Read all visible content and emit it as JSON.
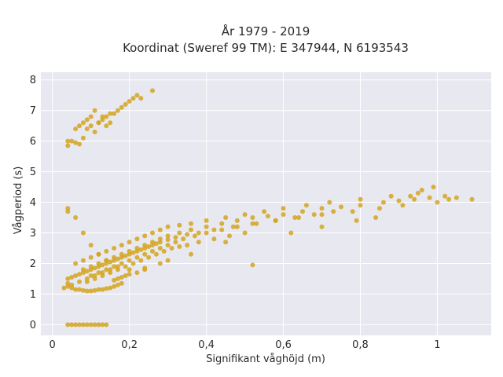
{
  "chart_data": {
    "type": "scatter",
    "title_line1": "År 1979 - 2019",
    "title_line2": "Koordinat (Sweref 99 TM): E 347944, N 6193543",
    "xlabel": "Signifikant våghöjd (m)",
    "ylabel": "Vågperiod (s)",
    "xlim": [
      -0.03,
      1.14
    ],
    "ylim": [
      -0.35,
      8.25
    ],
    "xticks": [
      0,
      0.2,
      0.4,
      0.6,
      0.8,
      1
    ],
    "xtick_labels": [
      "0",
      "0,2",
      "0,4",
      "0,6",
      "0,8",
      "1"
    ],
    "yticks": [
      0,
      1,
      2,
      3,
      4,
      5,
      6,
      7,
      8
    ],
    "ytick_labels": [
      "0",
      "1",
      "2",
      "3",
      "4",
      "5",
      "6",
      "7",
      "8"
    ],
    "grid": true,
    "marker_color": "#d4a520",
    "background_color": "#e8e8f0",
    "grid_color": "#ffffff",
    "series": [
      {
        "x": [
          0.04,
          0.05,
          0.06,
          0.07,
          0.08,
          0.09,
          0.1,
          0.11,
          0.12,
          0.13,
          0.14,
          0.04,
          0.05,
          0.06,
          0.07,
          0.08,
          0.09,
          0.1,
          0.11,
          0.12,
          0.13,
          0.14,
          0.15,
          0.16,
          0.17,
          0.18,
          0.16,
          0.17,
          0.18,
          0.19,
          0.2,
          0.22,
          0.24,
          0.04,
          0.05,
          0.06,
          0.07,
          0.08,
          0.09,
          0.1,
          0.11,
          0.12,
          0.13,
          0.14,
          0.15,
          0.16,
          0.17,
          0.18,
          0.19,
          0.2,
          0.21,
          0.22,
          0.23,
          0.24,
          0.25,
          0.26,
          0.27,
          0.28,
          0.3,
          0.32,
          0.35,
          0.38,
          0.42,
          0.47,
          0.52,
          0.58,
          0.64,
          0.7,
          0.78,
          0.85,
          0.06,
          0.08,
          0.1,
          0.12,
          0.14,
          0.16,
          0.18,
          0.2,
          0.22,
          0.24,
          0.26,
          0.28,
          0.3,
          0.33,
          0.36,
          0.4,
          0.45,
          0.5,
          0.55,
          0.6,
          0.66,
          0.72,
          0.8,
          0.88,
          0.95,
          0.08,
          0.1,
          0.12,
          0.14,
          0.16,
          0.18,
          0.2,
          0.22,
          0.24,
          0.26,
          0.28,
          0.3,
          0.33,
          0.36,
          0.4,
          0.44,
          0.48,
          0.52,
          0.56,
          0.6,
          0.65,
          0.7,
          0.75,
          0.8,
          0.86,
          0.9,
          0.94,
          0.98,
          1.02,
          1.05,
          1.09,
          0.62,
          0.7,
          0.79,
          0.84,
          0.91,
          0.93,
          0.96,
          0.99,
          1.0,
          1.03,
          0.09,
          0.11,
          0.13,
          0.15,
          0.17,
          0.19,
          0.21,
          0.23,
          0.25,
          0.27,
          0.29,
          0.31,
          0.33,
          0.35,
          0.38,
          0.42,
          0.46,
          0.5,
          0.1,
          0.12,
          0.14,
          0.16,
          0.18,
          0.2,
          0.22,
          0.24,
          0.26,
          0.28,
          0.3,
          0.32,
          0.34,
          0.37,
          0.4,
          0.44,
          0.48,
          0.53,
          0.58,
          0.63,
          0.68,
          0.73,
          0.03,
          0.05,
          0.07,
          0.09,
          0.11,
          0.13,
          0.15,
          0.04,
          0.06,
          0.08,
          0.1,
          0.12,
          0.14,
          0.17,
          0.2,
          0.24,
          0.28,
          0.3,
          0.36,
          0.45,
          0.52,
          0.06,
          0.07,
          0.08,
          0.09,
          0.1,
          0.11,
          0.12,
          0.13,
          0.14,
          0.15,
          0.16,
          0.17,
          0.18,
          0.19,
          0.2,
          0.21,
          0.22,
          0.23,
          0.26,
          0.04,
          0.05,
          0.06,
          0.07,
          0.08,
          0.09,
          0.1,
          0.11,
          0.12,
          0.13,
          0.14,
          0.15,
          0.04,
          0.04,
          0.04
        ],
        "y": [
          0,
          0,
          0,
          0,
          0,
          0,
          0,
          0,
          0,
          0,
          0,
          1.25,
          1.2,
          1.15,
          1.15,
          1.12,
          1.1,
          1.1,
          1.12,
          1.15,
          1.15,
          1.18,
          1.2,
          1.25,
          1.3,
          1.35,
          1.45,
          1.5,
          1.55,
          1.6,
          1.65,
          1.7,
          1.8,
          1.5,
          1.55,
          1.6,
          1.65,
          1.7,
          1.75,
          1.8,
          1.85,
          1.9,
          1.95,
          2.0,
          2.05,
          2.1,
          2.15,
          2.2,
          2.25,
          2.3,
          2.35,
          2.4,
          2.45,
          2.5,
          2.55,
          2.6,
          2.65,
          2.7,
          2.78,
          2.85,
          2.95,
          3.0,
          3.1,
          3.2,
          3.3,
          3.4,
          3.5,
          3.6,
          3.7,
          3.8,
          2.0,
          2.1,
          2.2,
          2.3,
          2.4,
          2.5,
          2.6,
          2.7,
          2.8,
          2.9,
          3.0,
          3.1,
          3.2,
          3.25,
          3.3,
          3.4,
          3.5,
          3.6,
          3.7,
          3.8,
          3.9,
          4.0,
          4.1,
          4.2,
          4.3,
          1.8,
          1.9,
          2.0,
          2.1,
          2.2,
          2.3,
          2.4,
          2.5,
          2.6,
          2.7,
          2.8,
          2.9,
          3.0,
          3.1,
          3.2,
          3.3,
          3.4,
          3.5,
          3.55,
          3.6,
          3.7,
          3.8,
          3.85,
          3.9,
          4.0,
          4.05,
          4.1,
          4.15,
          4.2,
          4.15,
          4.1,
          3.0,
          3.2,
          3.4,
          3.5,
          3.9,
          4.2,
          4.4,
          4.5,
          4.0,
          4.1,
          1.4,
          1.5,
          1.6,
          1.7,
          1.8,
          1.9,
          2.0,
          2.1,
          2.2,
          2.3,
          2.4,
          2.5,
          2.55,
          2.6,
          2.7,
          2.8,
          2.9,
          3.0,
          1.6,
          1.7,
          1.8,
          1.9,
          2.0,
          2.1,
          2.2,
          2.3,
          2.4,
          2.5,
          2.6,
          2.7,
          2.8,
          2.9,
          3.0,
          3.1,
          3.2,
          3.3,
          3.4,
          3.5,
          3.6,
          3.7,
          1.2,
          1.3,
          1.4,
          1.5,
          1.6,
          1.7,
          1.8,
          3.8,
          3.5,
          3.0,
          2.6,
          2.3,
          2.1,
          1.9,
          1.8,
          1.85,
          2.0,
          2.1,
          2.3,
          2.7,
          1.95,
          6.4,
          6.5,
          6.6,
          6.7,
          6.8,
          7.0,
          6.6,
          6.8,
          6.5,
          6.6,
          6.9,
          7.0,
          7.1,
          7.2,
          7.3,
          7.4,
          7.5,
          7.4,
          7.65,
          6.0,
          6.0,
          5.95,
          5.9,
          6.1,
          6.4,
          6.5,
          6.3,
          6.6,
          6.7,
          6.8,
          6.9,
          3.7,
          5.85,
          1.35
        ]
      }
    ]
  }
}
